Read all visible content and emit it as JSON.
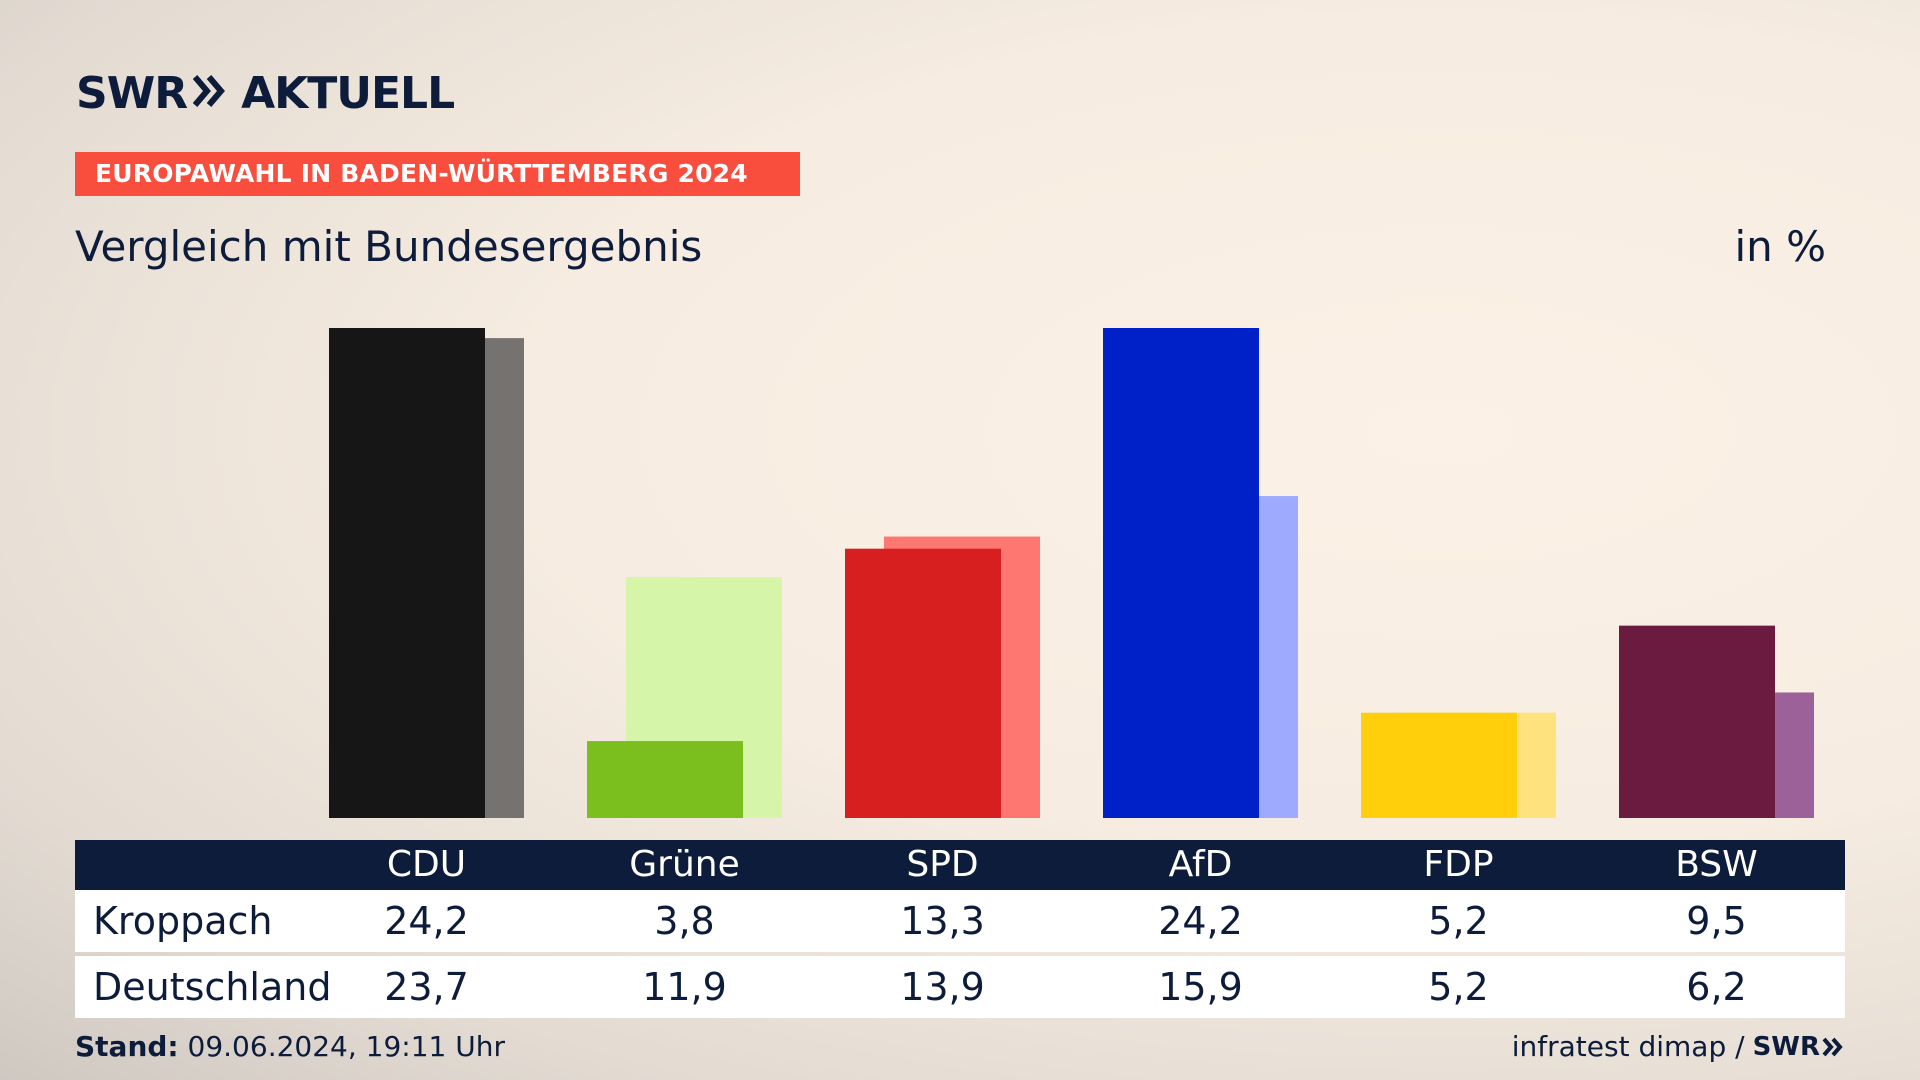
{
  "header": {
    "logo_left": "SWR",
    "logo_right": "AKTUELL",
    "tag": "EUROPAWAHL IN BADEN-WÜRTTEMBERG 2024",
    "subtitle": "Vergleich mit Bundesergebnis",
    "unit": "in %"
  },
  "colors": {
    "primary": [
      "#161616",
      "#7abf1d",
      "#d81f1f",
      "#0020c8",
      "#fecf0a",
      "#6b1a40"
    ],
    "secondary": [
      "#76726f",
      "#d5f6a9",
      "#fe7771",
      "#9daafd",
      "#fee27d",
      "#9b6198"
    ]
  },
  "chart_data": {
    "type": "bar",
    "categories": [
      "CDU",
      "Grüne",
      "SPD",
      "AfD",
      "FDP",
      "BSW"
    ],
    "series": [
      {
        "name": "Kroppach",
        "values": [
          24.2,
          3.8,
          13.3,
          24.2,
          5.2,
          9.5
        ]
      },
      {
        "name": "Deutschland",
        "values": [
          23.7,
          11.9,
          13.9,
          15.9,
          5.2,
          6.2
        ]
      }
    ],
    "ylim": [
      0,
      24.2
    ],
    "grid": false
  },
  "table": {
    "headers": [
      "CDU",
      "Grüne",
      "SPD",
      "AfD",
      "FDP",
      "BSW"
    ],
    "rows": [
      {
        "label": "Kroppach",
        "values": [
          "24,2",
          "3,8",
          "13,3",
          "24,2",
          "5,2",
          "9,5"
        ]
      },
      {
        "label": "Deutschland",
        "values": [
          "23,7",
          "11,9",
          "13,9",
          "15,9",
          "5,2",
          "6,2"
        ]
      }
    ]
  },
  "footer": {
    "stand_label": "Stand:",
    "stand_value": "09.06.2024, 19:11 Uhr",
    "source": "infratest dimap /",
    "source_logo": "SWR"
  }
}
